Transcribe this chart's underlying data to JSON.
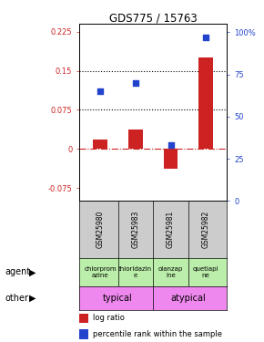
{
  "title": "GDS775 / 15763",
  "samples": [
    "GSM25980",
    "GSM25983",
    "GSM25981",
    "GSM25982"
  ],
  "log_ratios": [
    0.018,
    0.038,
    -0.038,
    0.175
  ],
  "percentile_ranks_pct": [
    65,
    70,
    33,
    97
  ],
  "ylim_left": [
    -0.1,
    0.24
  ],
  "ylim_right": [
    0,
    105
  ],
  "yticks_left": [
    -0.075,
    0,
    0.075,
    0.15,
    0.225
  ],
  "yticks_right": [
    0,
    25,
    50,
    75,
    100
  ],
  "ytick_labels_left": [
    "-0.075",
    "0",
    "0.075",
    "0.15",
    "0.225"
  ],
  "ytick_labels_right": [
    "0",
    "25",
    "50",
    "75",
    "100%"
  ],
  "hline_vals": [
    0.075,
    0.15
  ],
  "bar_color": "#cc2222",
  "dot_color": "#2244cc",
  "agent_labels": [
    "chlorprom\nazine",
    "thioridazin\ne",
    "olanzap\nine",
    "quetiapi\nne"
  ],
  "agent_bg": "#bbeeaa",
  "gsm_bg": "#cccccc",
  "other_color": "#ee88ee",
  "tick_color_left": "#cc2222",
  "tick_color_right": "#2244cc",
  "zero_line_color": "#cc2222",
  "legend_bar_color": "#cc2222",
  "legend_dot_color": "#2244cc"
}
